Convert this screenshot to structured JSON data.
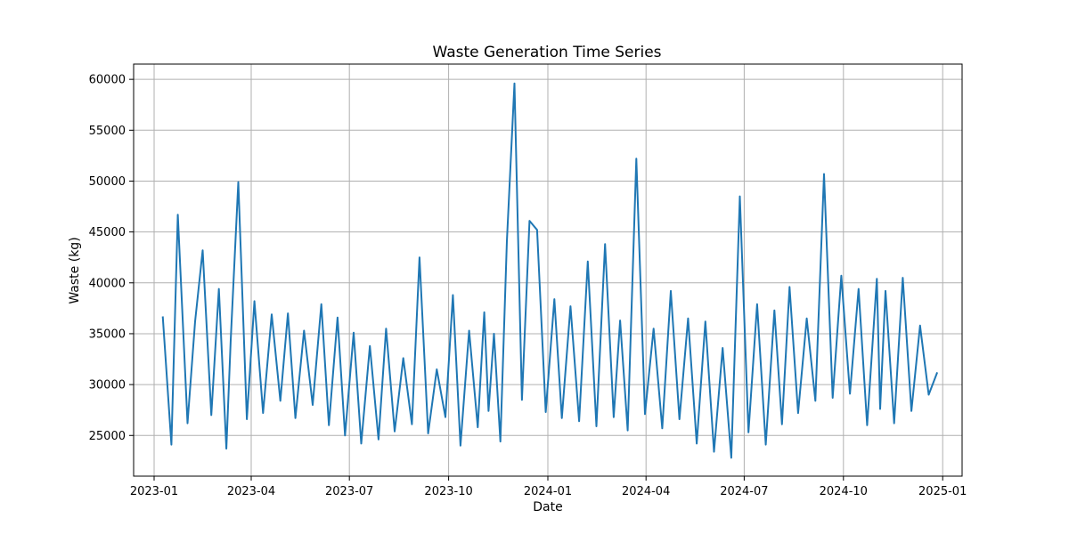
{
  "chart_data": {
    "type": "line",
    "title": "Waste Generation Time Series",
    "xlabel": "Date",
    "ylabel": "Waste (kg)",
    "x_ticks": [
      "2023-01",
      "2023-04",
      "2023-07",
      "2023-10",
      "2024-01",
      "2024-04",
      "2024-07",
      "2024-10",
      "2025-01"
    ],
    "y_ticks": [
      25000,
      30000,
      35000,
      40000,
      45000,
      50000,
      55000,
      60000
    ],
    "xlim": [
      "2022-12-13",
      "2025-01-19"
    ],
    "ylim": [
      21000,
      61500
    ],
    "grid": true,
    "color": "#1f77b4",
    "series": [
      {
        "dates": [
          "2023-01-09",
          "2023-01-17",
          "2023-01-23",
          "2023-02-01",
          "2023-02-08",
          "2023-02-15",
          "2023-02-23",
          "2023-03-02",
          "2023-03-09",
          "2023-03-13",
          "2023-03-20",
          "2023-03-28",
          "2023-04-04",
          "2023-04-12",
          "2023-04-20",
          "2023-04-28",
          "2023-05-05",
          "2023-05-12",
          "2023-05-20",
          "2023-05-28",
          "2023-06-05",
          "2023-06-12",
          "2023-06-20",
          "2023-06-27",
          "2023-07-05",
          "2023-07-12",
          "2023-07-20",
          "2023-07-28",
          "2023-08-04",
          "2023-08-12",
          "2023-08-20",
          "2023-08-28",
          "2023-09-04",
          "2023-09-12",
          "2023-09-20",
          "2023-09-28",
          "2023-10-05",
          "2023-10-12",
          "2023-10-20",
          "2023-10-28",
          "2023-11-03",
          "2023-11-07",
          "2023-11-12",
          "2023-11-18",
          "2023-11-24",
          "2023-12-01",
          "2023-12-08",
          "2023-12-15",
          "2023-12-22",
          "2023-12-30",
          "2024-01-07",
          "2024-01-14",
          "2024-01-22",
          "2024-01-30",
          "2024-02-07",
          "2024-02-15",
          "2024-02-23",
          "2024-03-02",
          "2024-03-08",
          "2024-03-15",
          "2024-03-23",
          "2024-03-31",
          "2024-04-08",
          "2024-04-16",
          "2024-04-24",
          "2024-05-02",
          "2024-05-10",
          "2024-05-18",
          "2024-05-26",
          "2024-06-03",
          "2024-06-11",
          "2024-06-19",
          "2024-06-27",
          "2024-07-05",
          "2024-07-13",
          "2024-07-21",
          "2024-07-29",
          "2024-08-05",
          "2024-08-12",
          "2024-08-20",
          "2024-08-28",
          "2024-09-05",
          "2024-09-13",
          "2024-09-21",
          "2024-09-29",
          "2024-10-07",
          "2024-10-15",
          "2024-10-23",
          "2024-11-01",
          "2024-11-04",
          "2024-11-09",
          "2024-11-17",
          "2024-11-25",
          "2024-12-03",
          "2024-12-11",
          "2024-12-19",
          "2024-12-27"
        ],
        "values": [
          36700,
          24100,
          46700,
          26200,
          36200,
          43200,
          27000,
          39400,
          23700,
          34400,
          49900,
          26600,
          38200,
          27200,
          36900,
          28400,
          37000,
          26700,
          35300,
          28000,
          37900,
          26000,
          36600,
          25000,
          35100,
          24200,
          33800,
          24600,
          35500,
          25400,
          32600,
          26100,
          42500,
          25200,
          31500,
          26800,
          38800,
          24000,
          35300,
          25800,
          37100,
          27400,
          35000,
          24400,
          44100,
          59600,
          28500,
          46100,
          45200,
          27300,
          38400,
          26700,
          37700,
          26400,
          42100,
          25900,
          43800,
          26800,
          36300,
          25500,
          52200,
          27100,
          35500,
          25700,
          39200,
          26600,
          36500,
          24200,
          36200,
          23400,
          33600,
          22800,
          48500,
          25300,
          37900,
          24100,
          37300,
          26100,
          39600,
          27200,
          36500,
          28400,
          50700,
          28700,
          40700,
          29100,
          39400,
          26000,
          40400,
          27600,
          39200,
          26200,
          40500,
          27400,
          35800,
          29000,
          31200
        ]
      }
    ]
  }
}
